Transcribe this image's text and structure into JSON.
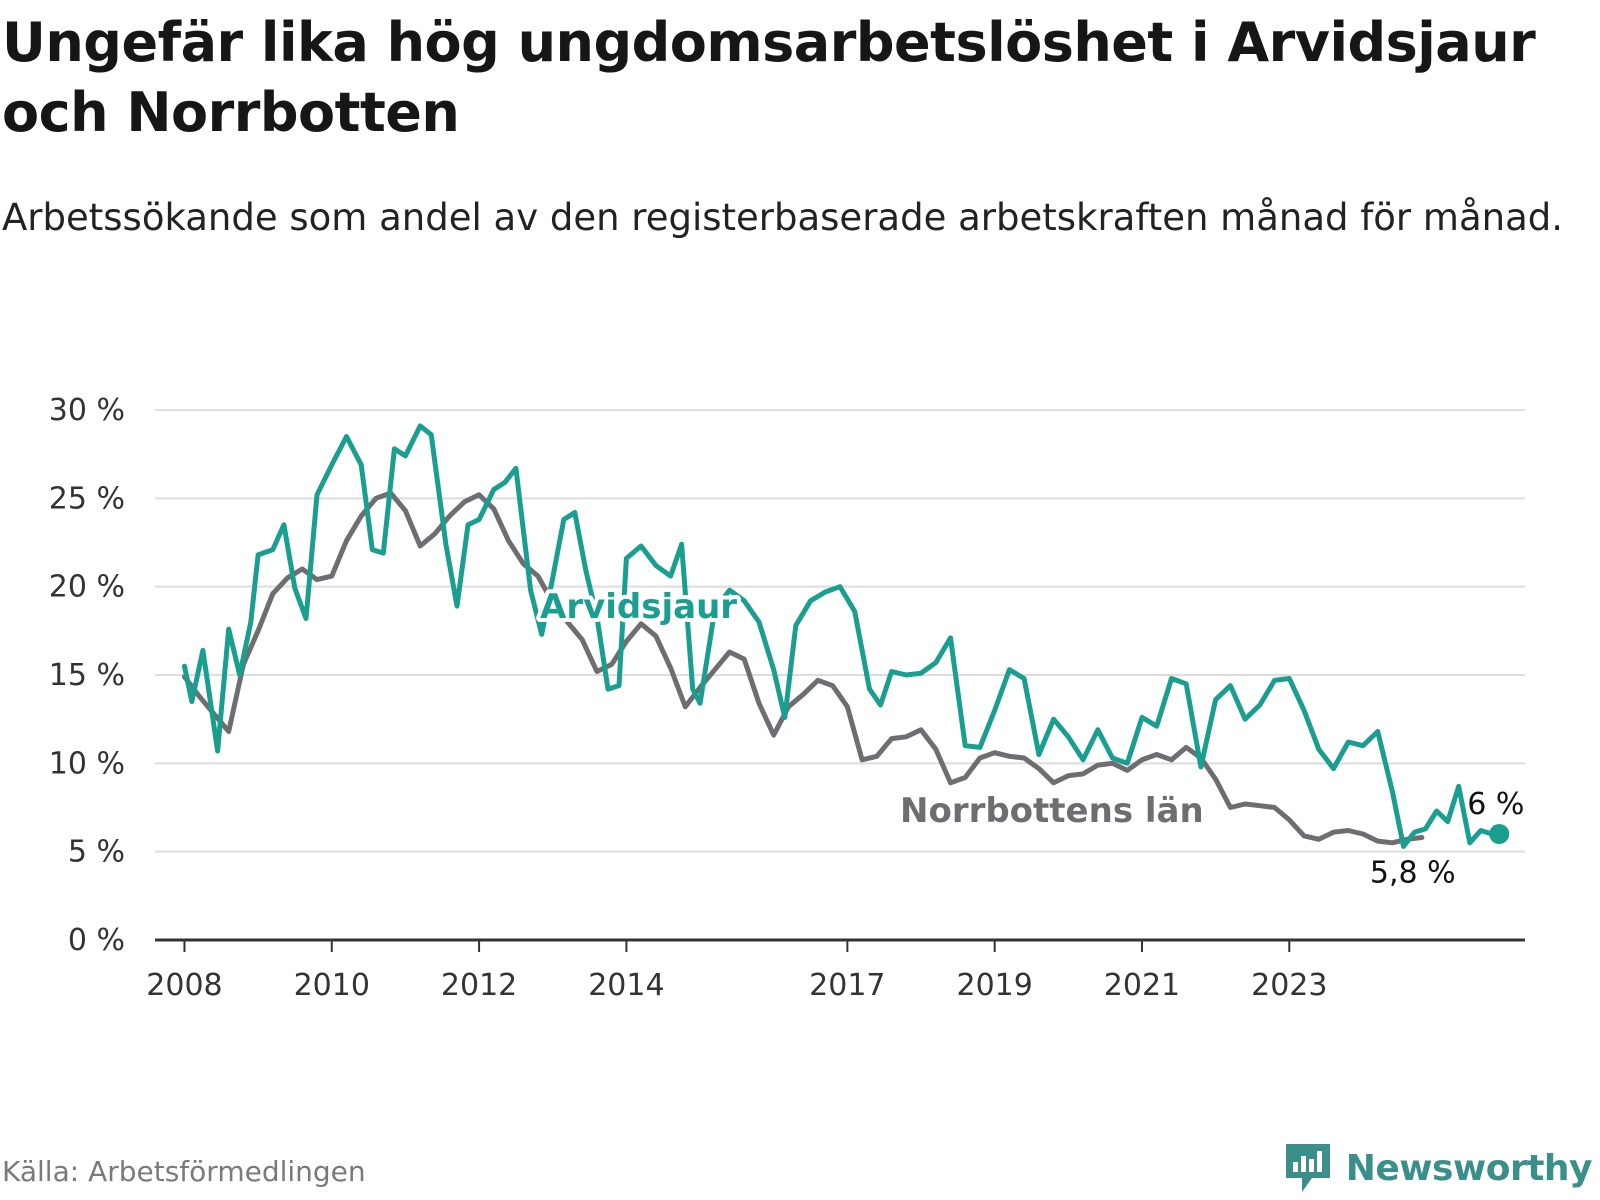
{
  "title": "Ungefär lika hög ungdomsarbetslöshet i Arvidsjaur och Norrbotten",
  "subtitle": "Arbetssökande som andel av den registerbaserade arbetskraften månad för månad.",
  "source": "Källa: Arbetsförmedlingen",
  "brand": {
    "name": "Newsworthy",
    "logo_icon": "newsworthy-logo-icon",
    "color": "#3a8f8a"
  },
  "colors": {
    "arvidsjaur": "#1a9e8f",
    "norrbotten": "#6d6d72",
    "grid": "#dddddd",
    "axis": "#333333"
  },
  "chart_data": {
    "type": "line",
    "title": "Ungefär lika hög ungdomsarbetslöshet i Arvidsjaur och Norrbotten",
    "xlabel": "",
    "ylabel": "",
    "ylim": [
      0,
      30
    ],
    "xlim": [
      2007.6,
      2026.2
    ],
    "yticks": [
      0,
      5,
      10,
      15,
      20,
      25,
      30
    ],
    "ytick_labels": [
      "0 %",
      "5 %",
      "10 %",
      "15 %",
      "20 %",
      "25 %",
      "30 %"
    ],
    "xticks": [
      2008,
      2010,
      2012,
      2014,
      2017,
      2019,
      2021,
      2023
    ],
    "xtick_labels": [
      "2008",
      "2010",
      "2012",
      "2014",
      "2017",
      "2019",
      "2021",
      "2023"
    ],
    "grid": true,
    "series": [
      {
        "name": "Norrbottens län",
        "label": "Norrbottens län",
        "end_label": "5,8 %",
        "points": [
          [
            2008.0,
            14.9
          ],
          [
            2008.2,
            13.8
          ],
          [
            2008.4,
            12.8
          ],
          [
            2008.6,
            11.8
          ],
          [
            2008.8,
            15.6
          ],
          [
            2009.0,
            17.5
          ],
          [
            2009.2,
            19.6
          ],
          [
            2009.4,
            20.5
          ],
          [
            2009.6,
            21.0
          ],
          [
            2009.8,
            20.4
          ],
          [
            2010.0,
            20.6
          ],
          [
            2010.2,
            22.6
          ],
          [
            2010.4,
            24.0
          ],
          [
            2010.6,
            25.0
          ],
          [
            2010.8,
            25.3
          ],
          [
            2011.0,
            24.3
          ],
          [
            2011.2,
            22.3
          ],
          [
            2011.4,
            23.0
          ],
          [
            2011.6,
            24.0
          ],
          [
            2011.8,
            24.8
          ],
          [
            2012.0,
            25.2
          ],
          [
            2012.2,
            24.4
          ],
          [
            2012.4,
            22.6
          ],
          [
            2012.6,
            21.3
          ],
          [
            2012.8,
            20.6
          ],
          [
            2013.0,
            19.1
          ],
          [
            2013.2,
            18.0
          ],
          [
            2013.4,
            17.0
          ],
          [
            2013.6,
            15.2
          ],
          [
            2013.8,
            15.6
          ],
          [
            2014.0,
            16.9
          ],
          [
            2014.2,
            17.9
          ],
          [
            2014.4,
            17.2
          ],
          [
            2014.6,
            15.4
          ],
          [
            2014.8,
            13.2
          ],
          [
            2015.0,
            14.3
          ],
          [
            2015.2,
            15.3
          ],
          [
            2015.4,
            16.3
          ],
          [
            2015.6,
            15.9
          ],
          [
            2015.8,
            13.4
          ],
          [
            2016.0,
            11.6
          ],
          [
            2016.2,
            13.2
          ],
          [
            2016.4,
            13.9
          ],
          [
            2016.6,
            14.7
          ],
          [
            2016.8,
            14.4
          ],
          [
            2017.0,
            13.2
          ],
          [
            2017.2,
            10.2
          ],
          [
            2017.4,
            10.4
          ],
          [
            2017.6,
            11.4
          ],
          [
            2017.8,
            11.5
          ],
          [
            2018.0,
            11.9
          ],
          [
            2018.2,
            10.8
          ],
          [
            2018.4,
            8.9
          ],
          [
            2018.6,
            9.2
          ],
          [
            2018.8,
            10.3
          ],
          [
            2019.0,
            10.6
          ],
          [
            2019.2,
            10.4
          ],
          [
            2019.4,
            10.3
          ],
          [
            2019.6,
            9.7
          ],
          [
            2019.8,
            8.9
          ],
          [
            2020.0,
            9.3
          ],
          [
            2020.2,
            9.4
          ],
          [
            2020.4,
            9.9
          ],
          [
            2020.6,
            10.0
          ],
          [
            2020.8,
            9.6
          ],
          [
            2021.0,
            10.2
          ],
          [
            2021.2,
            10.5
          ],
          [
            2021.4,
            10.2
          ],
          [
            2021.6,
            10.9
          ],
          [
            2021.8,
            10.3
          ],
          [
            2022.0,
            9.1
          ],
          [
            2022.2,
            7.5
          ],
          [
            2022.4,
            7.7
          ],
          [
            2022.6,
            7.6
          ],
          [
            2022.8,
            7.5
          ],
          [
            2023.0,
            6.8
          ],
          [
            2023.2,
            5.9
          ],
          [
            2023.4,
            5.7
          ],
          [
            2023.6,
            6.1
          ],
          [
            2023.8,
            6.2
          ],
          [
            2024.0,
            6.0
          ],
          [
            2024.2,
            5.6
          ],
          [
            2024.4,
            5.5
          ],
          [
            2024.6,
            5.7
          ],
          [
            2024.8,
            5.8
          ]
        ]
      },
      {
        "name": "Arvidsjaur",
        "label": "Arvidsjaur",
        "end_label": "6 %",
        "points": [
          [
            2008.0,
            15.5
          ],
          [
            2008.1,
            13.5
          ],
          [
            2008.25,
            16.4
          ],
          [
            2008.45,
            10.7
          ],
          [
            2008.6,
            17.6
          ],
          [
            2008.75,
            15.0
          ],
          [
            2008.9,
            18.0
          ],
          [
            2009.0,
            21.8
          ],
          [
            2009.2,
            22.1
          ],
          [
            2009.35,
            23.5
          ],
          [
            2009.5,
            19.9
          ],
          [
            2009.65,
            18.2
          ],
          [
            2009.8,
            25.2
          ],
          [
            2010.0,
            26.9
          ],
          [
            2010.2,
            28.5
          ],
          [
            2010.4,
            26.9
          ],
          [
            2010.55,
            22.1
          ],
          [
            2010.7,
            21.9
          ],
          [
            2010.85,
            27.8
          ],
          [
            2011.0,
            27.4
          ],
          [
            2011.2,
            29.1
          ],
          [
            2011.35,
            28.6
          ],
          [
            2011.55,
            22.4
          ],
          [
            2011.7,
            18.9
          ],
          [
            2011.85,
            23.5
          ],
          [
            2012.0,
            23.8
          ],
          [
            2012.2,
            25.5
          ],
          [
            2012.35,
            25.9
          ],
          [
            2012.5,
            26.7
          ],
          [
            2012.7,
            19.8
          ],
          [
            2012.85,
            17.3
          ],
          [
            2013.0,
            20.5
          ],
          [
            2013.15,
            23.8
          ],
          [
            2013.3,
            24.2
          ],
          [
            2013.45,
            20.9
          ],
          [
            2013.6,
            18.3
          ],
          [
            2013.75,
            14.2
          ],
          [
            2013.9,
            14.4
          ],
          [
            2014.0,
            21.6
          ],
          [
            2014.2,
            22.3
          ],
          [
            2014.4,
            21.2
          ],
          [
            2014.6,
            20.6
          ],
          [
            2014.75,
            22.4
          ],
          [
            2014.9,
            14.2
          ],
          [
            2015.0,
            13.4
          ],
          [
            2015.2,
            18.7
          ],
          [
            2015.4,
            19.8
          ],
          [
            2015.6,
            19.2
          ],
          [
            2015.8,
            18.0
          ],
          [
            2016.0,
            15.3
          ],
          [
            2016.15,
            12.6
          ],
          [
            2016.3,
            17.8
          ],
          [
            2016.5,
            19.2
          ],
          [
            2016.7,
            19.7
          ],
          [
            2016.9,
            20.0
          ],
          [
            2017.1,
            18.6
          ],
          [
            2017.3,
            14.2
          ],
          [
            2017.45,
            13.3
          ],
          [
            2017.6,
            15.2
          ],
          [
            2017.8,
            15.0
          ],
          [
            2018.0,
            15.1
          ],
          [
            2018.2,
            15.7
          ],
          [
            2018.4,
            17.1
          ],
          [
            2018.6,
            11.0
          ],
          [
            2018.8,
            10.9
          ],
          [
            2019.0,
            13.0
          ],
          [
            2019.2,
            15.3
          ],
          [
            2019.4,
            14.8
          ],
          [
            2019.6,
            10.5
          ],
          [
            2019.8,
            12.5
          ],
          [
            2020.0,
            11.5
          ],
          [
            2020.2,
            10.2
          ],
          [
            2020.4,
            11.9
          ],
          [
            2020.6,
            10.3
          ],
          [
            2020.8,
            10.0
          ],
          [
            2021.0,
            12.6
          ],
          [
            2021.2,
            12.1
          ],
          [
            2021.4,
            14.8
          ],
          [
            2021.6,
            14.5
          ],
          [
            2021.8,
            9.8
          ],
          [
            2022.0,
            13.6
          ],
          [
            2022.2,
            14.4
          ],
          [
            2022.4,
            12.5
          ],
          [
            2022.6,
            13.3
          ],
          [
            2022.8,
            14.7
          ],
          [
            2023.0,
            14.8
          ],
          [
            2023.2,
            13.0
          ],
          [
            2023.4,
            10.8
          ],
          [
            2023.6,
            9.7
          ],
          [
            2023.8,
            11.2
          ],
          [
            2024.0,
            11.0
          ],
          [
            2024.2,
            11.8
          ],
          [
            2024.4,
            8.4
          ],
          [
            2024.55,
            5.3
          ],
          [
            2024.7,
            6.1
          ],
          [
            2024.85,
            6.3
          ],
          [
            2025.0,
            7.3
          ],
          [
            2025.15,
            6.7
          ],
          [
            2025.3,
            8.7
          ],
          [
            2025.45,
            5.5
          ],
          [
            2025.6,
            6.2
          ],
          [
            2025.75,
            6.0
          ],
          [
            2025.85,
            6.0
          ]
        ]
      }
    ]
  }
}
